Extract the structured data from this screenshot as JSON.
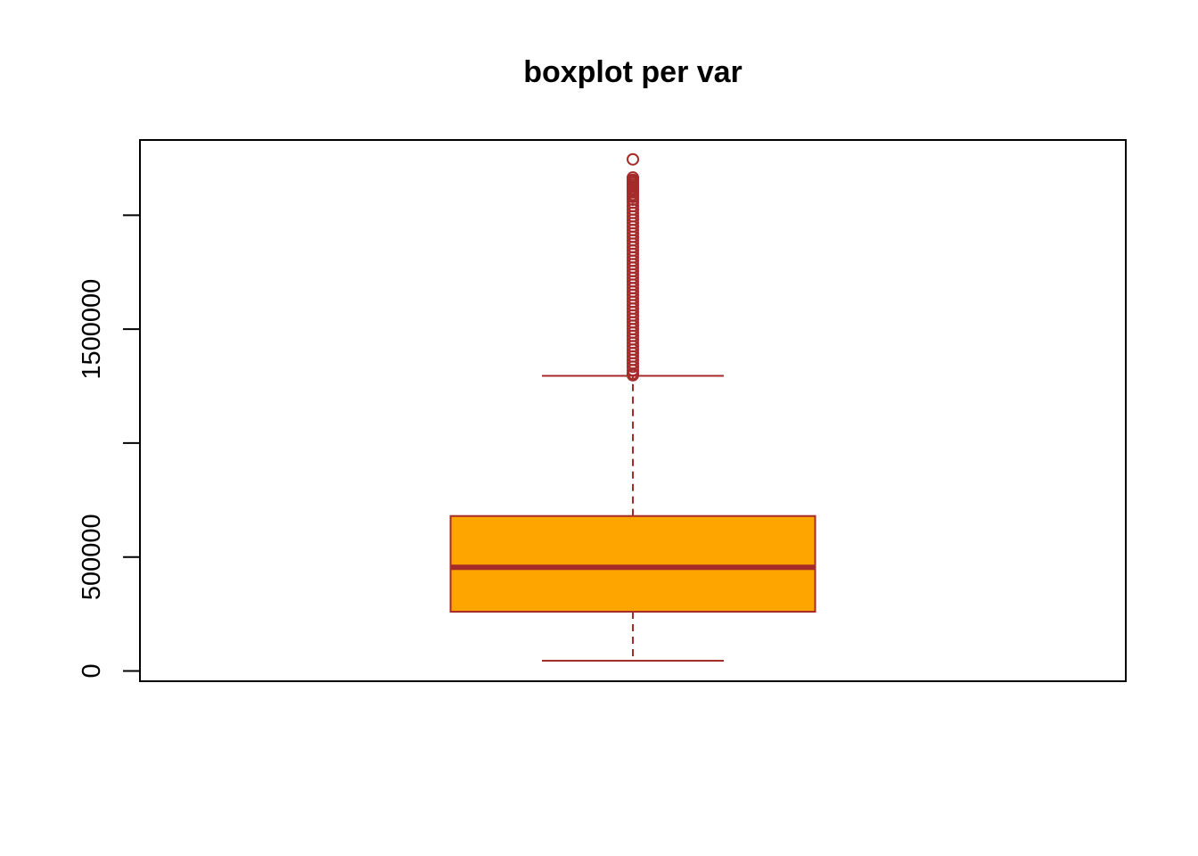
{
  "chart_data": {
    "type": "boxplot",
    "title": "boxplot per var",
    "xlabel": "",
    "ylabel": "",
    "y_ticks": [
      0,
      500000,
      1000000,
      1500000,
      2000000
    ],
    "y_tick_labels": [
      "0",
      "500000",
      "",
      "1500000",
      ""
    ],
    "ylim": [
      -45000,
      2330000
    ],
    "grid": false,
    "legend": "none",
    "boxes": [
      {
        "whisker_low": 45000,
        "q1": 260000,
        "median": 455000,
        "q3": 680000,
        "whisker_high": 1295000,
        "outliers": [
          2245000,
          2165000,
          2155000,
          2148000,
          2140000,
          2132000,
          2124000,
          2116000,
          2108000,
          2100000,
          2090000,
          2080000,
          2068000,
          2055000,
          2040000,
          2025000,
          2010000,
          1995000,
          1980000,
          1965000,
          1950000,
          1935000,
          1920000,
          1905000,
          1890000,
          1875000,
          1860000,
          1845000,
          1830000,
          1815000,
          1800000,
          1785000,
          1770000,
          1755000,
          1740000,
          1725000,
          1710000,
          1695000,
          1680000,
          1665000,
          1650000,
          1635000,
          1620000,
          1605000,
          1590000,
          1575000,
          1560000,
          1545000,
          1530000,
          1515000,
          1500000,
          1485000,
          1470000,
          1455000,
          1440000,
          1425000,
          1410000,
          1395000,
          1380000,
          1365000,
          1350000,
          1335000,
          1320000,
          1305000,
          1298000
        ]
      }
    ],
    "colors": {
      "box_fill": "#FFA500",
      "box_border": "#A52A2A",
      "axis": "#000000"
    }
  }
}
